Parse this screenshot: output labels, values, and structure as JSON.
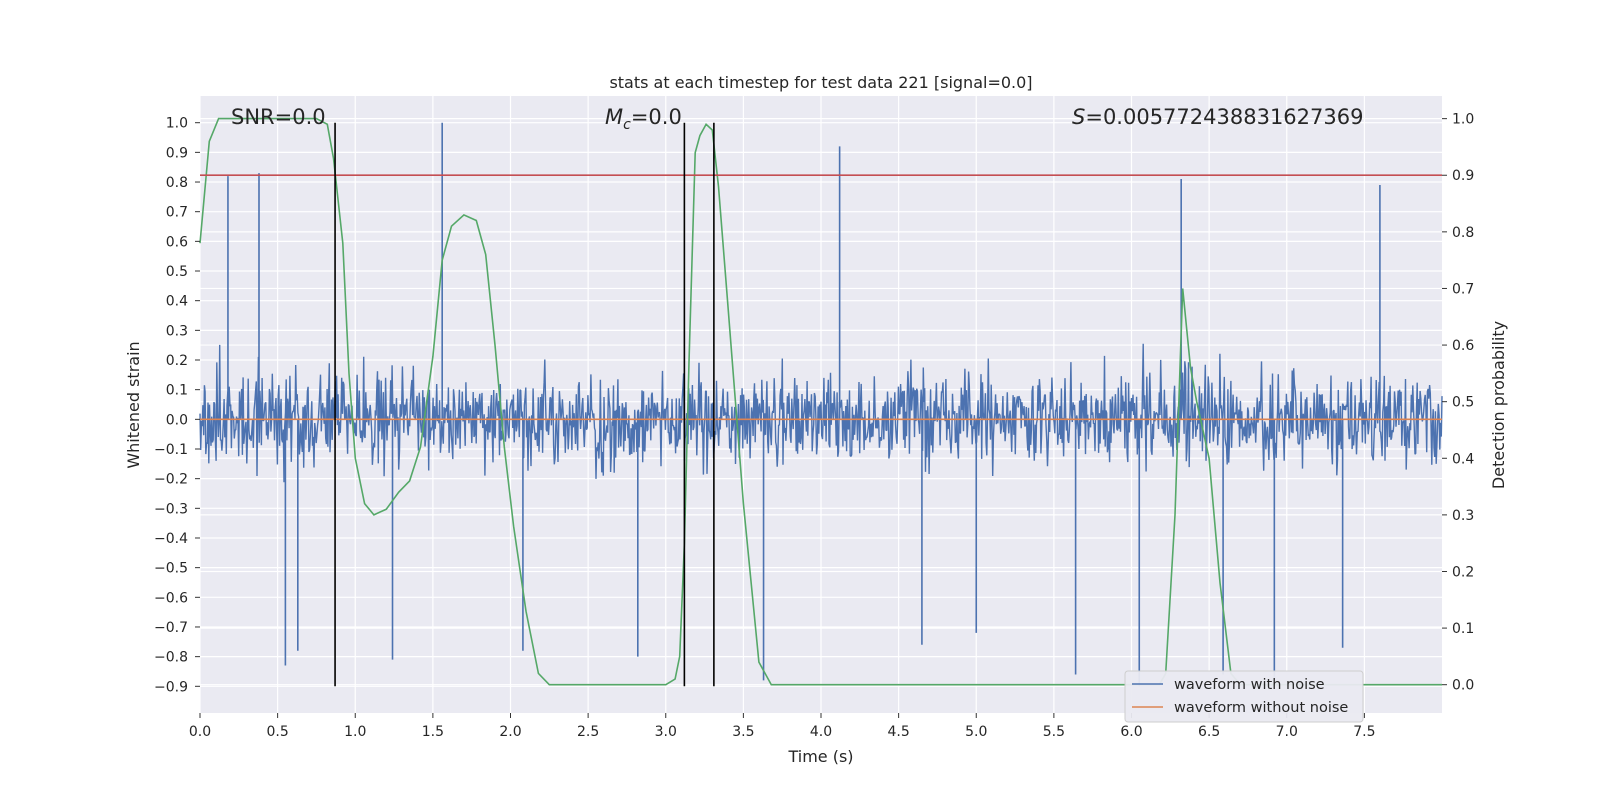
{
  "chart_data": {
    "type": "line",
    "title": "stats at each timestep for test data 221 [signal=0.0]",
    "xlabel": "Time (s)",
    "ylabel_left": "Whitened strain",
    "ylabel_right": "Detection probability",
    "xlim": [
      0.0,
      8.0
    ],
    "ylim_left": [
      -0.99,
      1.09
    ],
    "ylim_right": [
      -0.05,
      1.04
    ],
    "grid": true,
    "legend_position": "lower right",
    "x_ticks": [
      "0.0",
      "0.5",
      "1.0",
      "1.5",
      "2.0",
      "2.5",
      "3.0",
      "3.5",
      "4.0",
      "4.5",
      "5.0",
      "5.5",
      "6.0",
      "6.5",
      "7.0",
      "7.5"
    ],
    "y_ticks_left": [
      "1.0",
      "0.9",
      "0.8",
      "0.7",
      "0.6",
      "0.5",
      "0.4",
      "0.3",
      "0.2",
      "0.1",
      "0.0",
      "−0.1",
      "−0.2",
      "−0.3",
      "−0.4",
      "−0.5",
      "−0.6",
      "−0.7",
      "−0.8",
      "−0.9"
    ],
    "y_ticks_right": [
      "1.0",
      "0.9",
      "0.8",
      "0.7",
      "0.6",
      "0.5",
      "0.4",
      "0.3",
      "0.2",
      "0.1",
      "0.0"
    ],
    "annotations": {
      "snr": "SNR=0.0",
      "mc_symbol": "M",
      "mc_sub": "c",
      "mc_rest": "=0.0",
      "s_symbol": "S",
      "s_rest": "=0.005772438831627369"
    },
    "series": [
      {
        "name": "waveform with noise",
        "color": "#4c72b0",
        "axis": "left",
        "style": "dense noise, values mostly within ±0.45",
        "spikes": [
          [
            0.18,
            0.82
          ],
          [
            0.38,
            0.83
          ],
          [
            0.55,
            -0.83
          ],
          [
            0.63,
            -0.78
          ],
          [
            1.24,
            -0.81
          ],
          [
            1.56,
            1.0
          ],
          [
            2.08,
            -0.78
          ],
          [
            2.82,
            -0.8
          ],
          [
            3.63,
            -0.88
          ],
          [
            4.12,
            0.92
          ],
          [
            4.65,
            -0.76
          ],
          [
            5.0,
            -0.72
          ],
          [
            5.64,
            -0.86
          ],
          [
            6.05,
            -0.9
          ],
          [
            6.32,
            0.81
          ],
          [
            6.59,
            -0.86
          ],
          [
            6.92,
            -0.88
          ],
          [
            7.36,
            -0.77
          ],
          [
            7.6,
            0.79
          ]
        ]
      },
      {
        "name": "waveform without noise",
        "color": "#dd8452",
        "axis": "left",
        "x": [
          0.0,
          8.0
        ],
        "y": [
          0.0,
          0.0
        ]
      },
      {
        "name": "",
        "color": "#55a868",
        "axis": "right",
        "x": [
          0.0,
          0.06,
          0.12,
          0.25,
          0.5,
          0.75,
          0.82,
          0.86,
          0.88,
          0.92,
          0.96,
          1.0,
          1.06,
          1.12,
          1.2,
          1.28,
          1.35,
          1.42,
          1.5,
          1.56,
          1.62,
          1.7,
          1.78,
          1.84,
          1.9,
          1.96,
          2.02,
          2.1,
          2.18,
          2.25,
          2.35,
          2.6,
          3.0,
          3.06,
          3.09,
          3.12,
          3.15,
          3.19,
          3.22,
          3.26,
          3.3,
          3.34,
          3.4,
          3.5,
          3.6,
          3.68,
          3.8,
          4.5,
          4.9,
          5.2,
          6.0,
          6.18,
          6.22,
          6.28,
          6.33,
          6.38,
          6.42,
          6.5,
          6.57,
          6.64,
          6.7,
          7.2,
          7.5,
          7.6,
          7.7,
          8.0
        ],
        "y": [
          0.78,
          0.96,
          1.0,
          1.0,
          1.0,
          1.0,
          0.99,
          0.93,
          0.88,
          0.78,
          0.55,
          0.4,
          0.32,
          0.3,
          0.31,
          0.34,
          0.36,
          0.42,
          0.58,
          0.75,
          0.81,
          0.83,
          0.82,
          0.76,
          0.6,
          0.42,
          0.28,
          0.13,
          0.02,
          0.0,
          0.0,
          0.0,
          0.0,
          0.01,
          0.05,
          0.25,
          0.57,
          0.94,
          0.97,
          0.99,
          0.98,
          0.88,
          0.67,
          0.32,
          0.04,
          0.0,
          0.0,
          0.0,
          0.0,
          0.0,
          0.0,
          0.0,
          0.02,
          0.3,
          0.7,
          0.56,
          0.5,
          0.4,
          0.18,
          0.02,
          0.0,
          0.0,
          0.0,
          0.0,
          0.0,
          0.0
        ]
      },
      {
        "name": "",
        "color": "#c44e52",
        "axis": "right",
        "x": [
          0.0,
          8.0
        ],
        "y": [
          0.9,
          0.9
        ]
      }
    ],
    "vertical_lines": {
      "color": "#000000",
      "x": [
        0.87,
        3.12,
        3.31
      ],
      "ymin_left": -0.9,
      "ymax_left": 1.0
    }
  }
}
